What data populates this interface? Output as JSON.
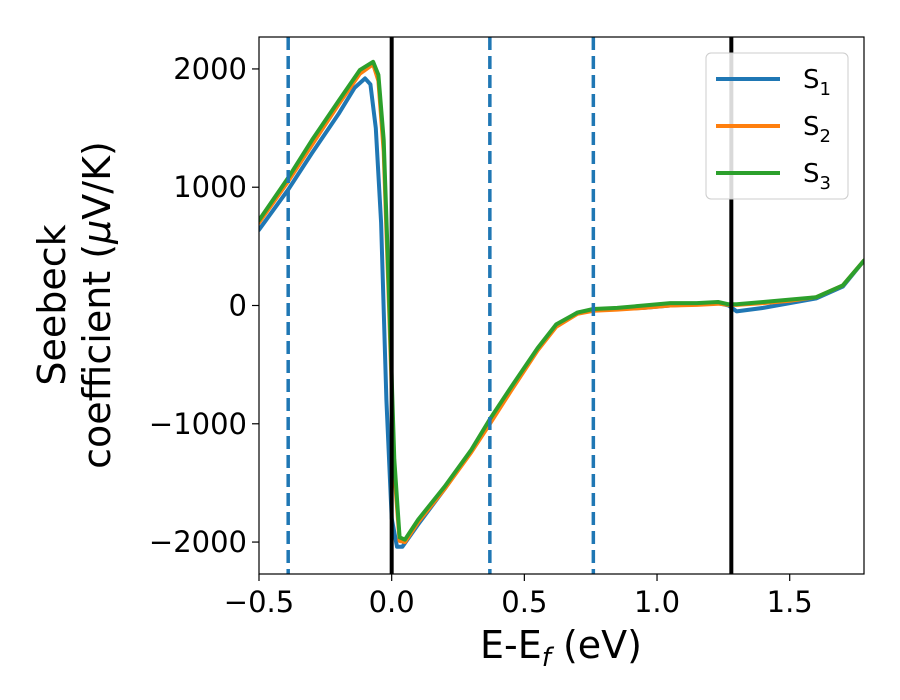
{
  "chart_data": {
    "type": "line",
    "title": "",
    "xlabel": {
      "main": "E-E",
      "sub": "f",
      "suffix": " (eV)"
    },
    "ylabel": {
      "line1": "Seebeck",
      "line2_prefix": "coefficient  (",
      "mu": "μ",
      "line2_suffix": "V/K)"
    },
    "xlim": [
      -0.5,
      1.78
    ],
    "ylim": [
      -2270,
      2270
    ],
    "xticks": [
      -0.5,
      0.0,
      0.5,
      1.0,
      1.5
    ],
    "xtick_labels": [
      "−0.5",
      "0.0",
      "0.5",
      "1.0",
      "1.5"
    ],
    "yticks": [
      -2000,
      -1000,
      0,
      1000,
      2000
    ],
    "ytick_labels": [
      "−2000",
      "−1000",
      "0",
      "1000",
      "2000"
    ],
    "grid": false,
    "legend_position": "top-right",
    "vlines": [
      {
        "x": -0.39,
        "style": "dashed",
        "color": "#1f77b4"
      },
      {
        "x": 0.0,
        "style": "solid",
        "color": "#000000"
      },
      {
        "x": 0.37,
        "style": "dashed",
        "color": "#1f77b4"
      },
      {
        "x": 0.76,
        "style": "dashed",
        "color": "#1f77b4"
      },
      {
        "x": 1.28,
        "style": "solid",
        "color": "#000000"
      }
    ],
    "series": [
      {
        "name": "S",
        "sub": "1",
        "color": "#1f77b4",
        "points": [
          [
            -0.5,
            640
          ],
          [
            -0.39,
            980
          ],
          [
            -0.3,
            1290
          ],
          [
            -0.2,
            1620
          ],
          [
            -0.14,
            1840
          ],
          [
            -0.1,
            1920
          ],
          [
            -0.08,
            1870
          ],
          [
            -0.06,
            1500
          ],
          [
            -0.04,
            700
          ],
          [
            -0.02,
            -800
          ],
          [
            0.0,
            -1800
          ],
          [
            0.02,
            -2040
          ],
          [
            0.04,
            -2040
          ],
          [
            0.1,
            -1850
          ],
          [
            0.2,
            -1550
          ],
          [
            0.3,
            -1230
          ],
          [
            0.37,
            -980
          ],
          [
            0.45,
            -700
          ],
          [
            0.55,
            -370
          ],
          [
            0.62,
            -170
          ],
          [
            0.7,
            -60
          ],
          [
            0.76,
            -40
          ],
          [
            0.85,
            -30
          ],
          [
            0.95,
            -20
          ],
          [
            1.05,
            0
          ],
          [
            1.15,
            10
          ],
          [
            1.23,
            20
          ],
          [
            1.27,
            0
          ],
          [
            1.3,
            -50
          ],
          [
            1.4,
            -20
          ],
          [
            1.5,
            20
          ],
          [
            1.6,
            60
          ],
          [
            1.7,
            160
          ],
          [
            1.78,
            380
          ]
        ]
      },
      {
        "name": "S",
        "sub": "2",
        "color": "#ff7f0e",
        "points": [
          [
            -0.5,
            700
          ],
          [
            -0.39,
            1050
          ],
          [
            -0.3,
            1360
          ],
          [
            -0.2,
            1700
          ],
          [
            -0.12,
            1960
          ],
          [
            -0.07,
            2040
          ],
          [
            -0.05,
            1900
          ],
          [
            -0.03,
            1300
          ],
          [
            -0.01,
            0
          ],
          [
            0.01,
            -1400
          ],
          [
            0.03,
            -1990
          ],
          [
            0.05,
            -2000
          ],
          [
            0.1,
            -1830
          ],
          [
            0.2,
            -1550
          ],
          [
            0.3,
            -1240
          ],
          [
            0.37,
            -1000
          ],
          [
            0.45,
            -720
          ],
          [
            0.55,
            -380
          ],
          [
            0.62,
            -180
          ],
          [
            0.7,
            -70
          ],
          [
            0.76,
            -45
          ],
          [
            0.85,
            -35
          ],
          [
            0.95,
            -20
          ],
          [
            1.05,
            0
          ],
          [
            1.15,
            5
          ],
          [
            1.23,
            15
          ],
          [
            1.27,
            5
          ],
          [
            1.3,
            5
          ],
          [
            1.4,
            20
          ],
          [
            1.5,
            40
          ],
          [
            1.6,
            70
          ],
          [
            1.7,
            170
          ],
          [
            1.78,
            380
          ]
        ]
      },
      {
        "name": "S",
        "sub": "3",
        "color": "#2ca02c",
        "points": [
          [
            -0.5,
            720
          ],
          [
            -0.39,
            1080
          ],
          [
            -0.3,
            1400
          ],
          [
            -0.2,
            1730
          ],
          [
            -0.12,
            1990
          ],
          [
            -0.07,
            2060
          ],
          [
            -0.05,
            1950
          ],
          [
            -0.03,
            1400
          ],
          [
            -0.01,
            100
          ],
          [
            0.01,
            -1300
          ],
          [
            0.03,
            -1960
          ],
          [
            0.05,
            -1980
          ],
          [
            0.1,
            -1810
          ],
          [
            0.2,
            -1530
          ],
          [
            0.3,
            -1220
          ],
          [
            0.37,
            -960
          ],
          [
            0.45,
            -690
          ],
          [
            0.55,
            -360
          ],
          [
            0.62,
            -160
          ],
          [
            0.7,
            -60
          ],
          [
            0.76,
            -30
          ],
          [
            0.85,
            -20
          ],
          [
            0.95,
            0
          ],
          [
            1.05,
            20
          ],
          [
            1.15,
            20
          ],
          [
            1.23,
            30
          ],
          [
            1.27,
            10
          ],
          [
            1.3,
            10
          ],
          [
            1.4,
            30
          ],
          [
            1.5,
            50
          ],
          [
            1.6,
            70
          ],
          [
            1.7,
            170
          ],
          [
            1.78,
            380
          ]
        ]
      }
    ]
  }
}
